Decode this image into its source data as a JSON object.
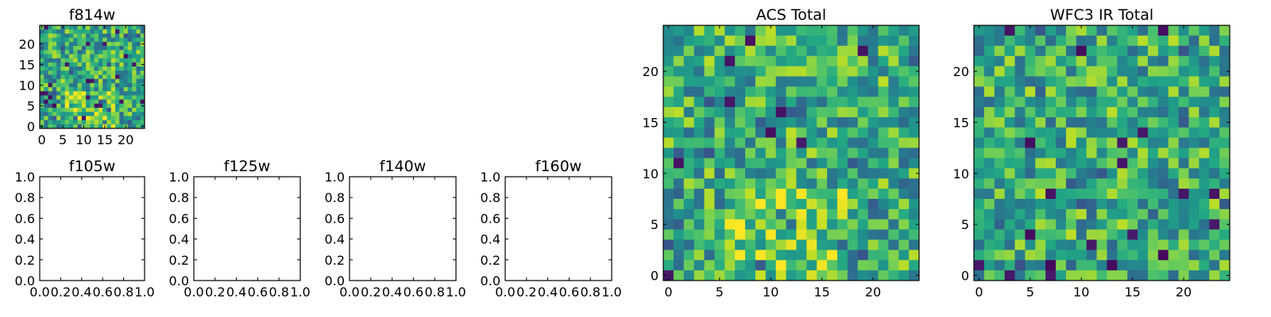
{
  "chart_data": [
    {
      "type": "heatmap",
      "title": "f814w",
      "grid_size": [
        25,
        25
      ],
      "colormap": "viridis",
      "x_ticks": [
        "0",
        "5",
        "10",
        "15",
        "20"
      ],
      "y_ticks": [
        "0",
        "5",
        "10",
        "15",
        "20"
      ],
      "xlim": [
        -0.5,
        24.5
      ],
      "ylim": [
        -0.5,
        24.5
      ],
      "grid": false
    },
    {
      "type": "heatmap",
      "title": "f105w",
      "empty": true,
      "x_ticks": [
        "0.0",
        "0.2",
        "0.4",
        "0.6",
        "0.8",
        "1.0"
      ],
      "y_ticks": [
        "0.0",
        "0.2",
        "0.4",
        "0.6",
        "0.8",
        "1.0"
      ],
      "xlim": [
        0,
        1
      ],
      "ylim": [
        0,
        1
      ]
    },
    {
      "type": "heatmap",
      "title": "f125w",
      "empty": true,
      "x_ticks": [
        "0.0",
        "0.2",
        "0.4",
        "0.6",
        "0.8",
        "1.0"
      ],
      "y_ticks": [
        "0.0",
        "0.2",
        "0.4",
        "0.6",
        "0.8",
        "1.0"
      ],
      "xlim": [
        0,
        1
      ],
      "ylim": [
        0,
        1
      ]
    },
    {
      "type": "heatmap",
      "title": "f140w",
      "empty": true,
      "x_ticks": [
        "0.0",
        "0.2",
        "0.4",
        "0.6",
        "0.8",
        "1.0"
      ],
      "y_ticks": [
        "0.0",
        "0.2",
        "0.4",
        "0.6",
        "0.8",
        "1.0"
      ],
      "xlim": [
        0,
        1
      ],
      "ylim": [
        0,
        1
      ]
    },
    {
      "type": "heatmap",
      "title": "f160w",
      "empty": true,
      "x_ticks": [
        "0.0",
        "0.2",
        "0.4",
        "0.6",
        "0.8",
        "1.0"
      ],
      "y_ticks": [
        "0.0",
        "0.2",
        "0.4",
        "0.6",
        "0.8",
        "1.0"
      ],
      "xlim": [
        0,
        1
      ],
      "ylim": [
        0,
        1
      ]
    },
    {
      "type": "heatmap",
      "title": "ACS Total",
      "grid_size": [
        25,
        25
      ],
      "colormap": "viridis",
      "x_ticks": [
        "0",
        "5",
        "10",
        "15",
        "20"
      ],
      "y_ticks": [
        "0",
        "5",
        "10",
        "15",
        "20"
      ],
      "xlim": [
        -0.5,
        24.5
      ],
      "ylim": [
        -0.5,
        24.5
      ],
      "grid": false
    },
    {
      "type": "heatmap",
      "title": "WFC3 IR Total",
      "grid_size": [
        25,
        25
      ],
      "colormap": "viridis",
      "x_ticks": [
        "0",
        "5",
        "10",
        "15",
        "20"
      ],
      "y_ticks": [
        "0",
        "5",
        "10",
        "15",
        "20"
      ],
      "xlim": [
        -0.5,
        24.5
      ],
      "ylim": [
        -0.5,
        24.5
      ],
      "grid": false
    }
  ]
}
